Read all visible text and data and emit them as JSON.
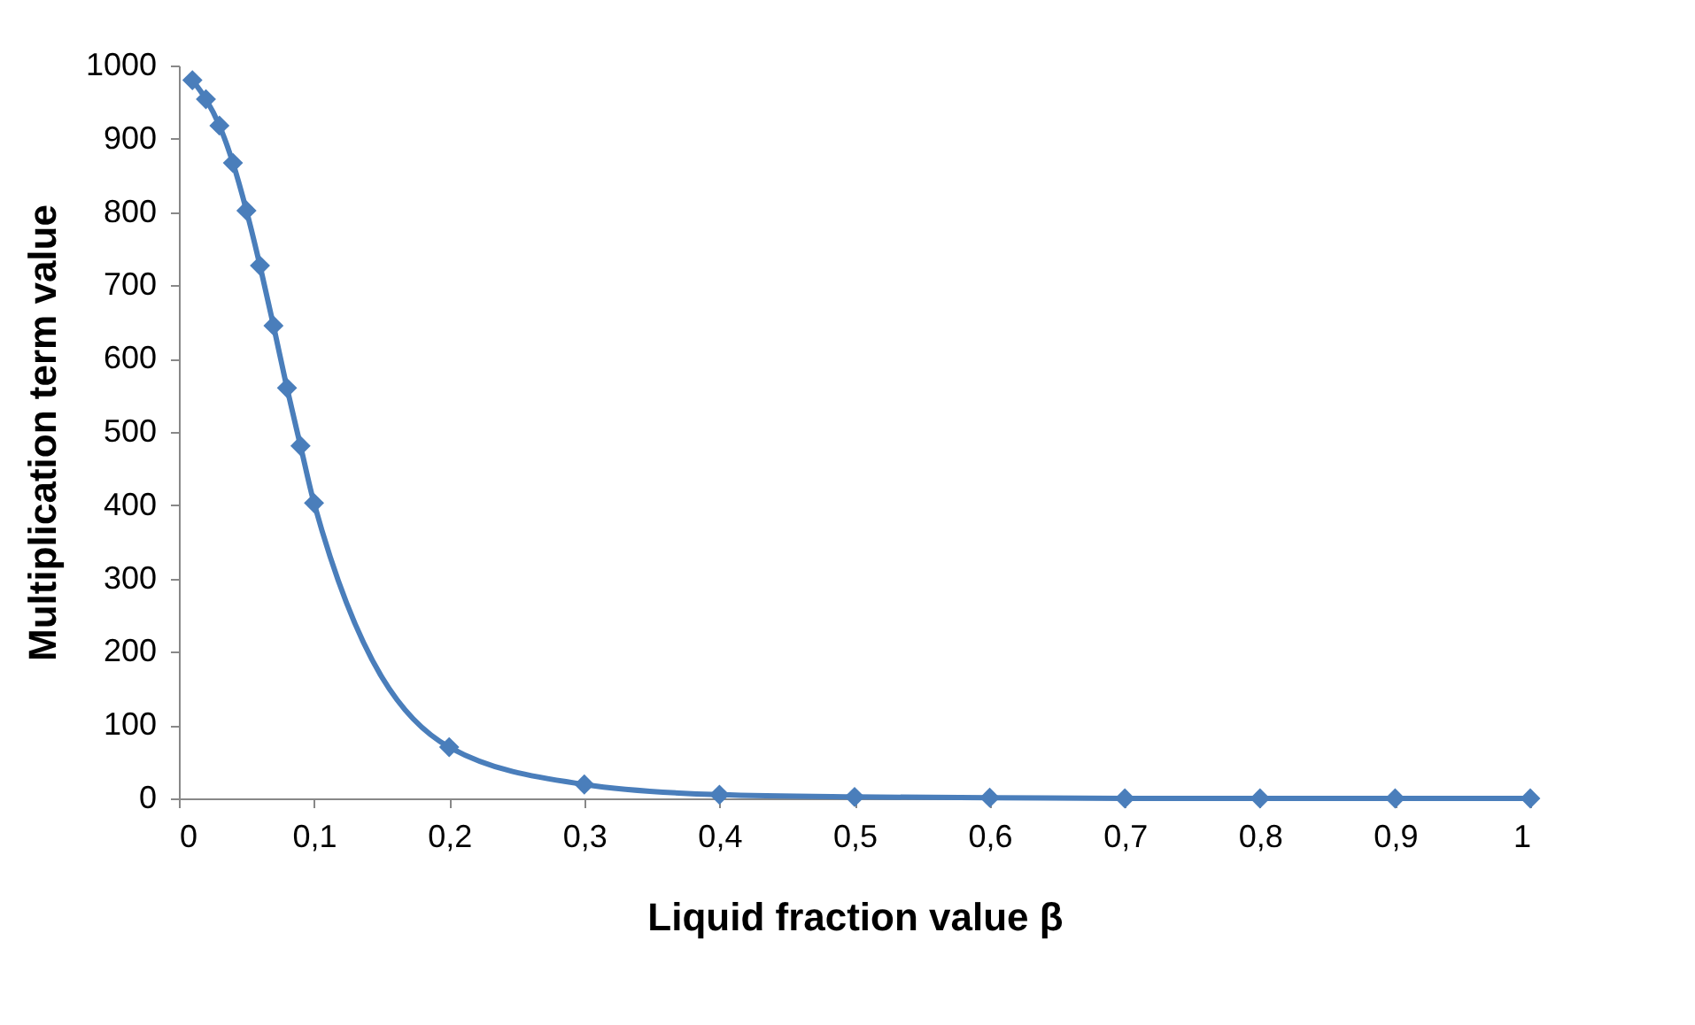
{
  "chart_data": {
    "type": "line",
    "xlabel": "Liquid fraction value β",
    "ylabel": "Multiplication term value",
    "x": [
      0.01,
      0.02,
      0.03,
      0.04,
      0.05,
      0.06,
      0.07,
      0.08,
      0.09,
      0.1,
      0.2,
      0.3,
      0.4,
      0.5,
      0.6,
      0.7,
      0.8,
      0.9,
      1
    ],
    "series": [
      {
        "color": "#4a7ebb",
        "values": [
          980,
          954,
          918,
          867,
          802,
          727,
          645,
          560,
          481,
          403,
          70,
          19,
          5,
          2,
          1,
          0,
          0,
          0,
          0
        ]
      }
    ],
    "xlim": [
      0,
      1
    ],
    "xticks": [
      0,
      {
        "value": 0.1,
        "label": "0,1"
      },
      {
        "value": 0.2,
        "label": "0,2"
      },
      {
        "value": 0.3,
        "label": "0,3"
      },
      {
        "value": 0.4,
        "label": "0,4"
      },
      {
        "value": 0.5,
        "label": "0,5"
      },
      {
        "value": 0.6,
        "label": "0,6"
      },
      {
        "value": 0.7,
        "label": "0,7"
      },
      {
        "value": 0.8,
        "label": "0,8"
      },
      {
        "value": 0.9,
        "label": "0,9"
      },
      1
    ],
    "ylim": [
      0,
      1000
    ],
    "yticks": [
      0,
      100,
      200,
      300,
      400,
      500,
      600,
      700,
      800,
      900,
      1000
    ],
    "grid": false,
    "legend": false,
    "marker": "diamond",
    "line_style": "solid"
  }
}
